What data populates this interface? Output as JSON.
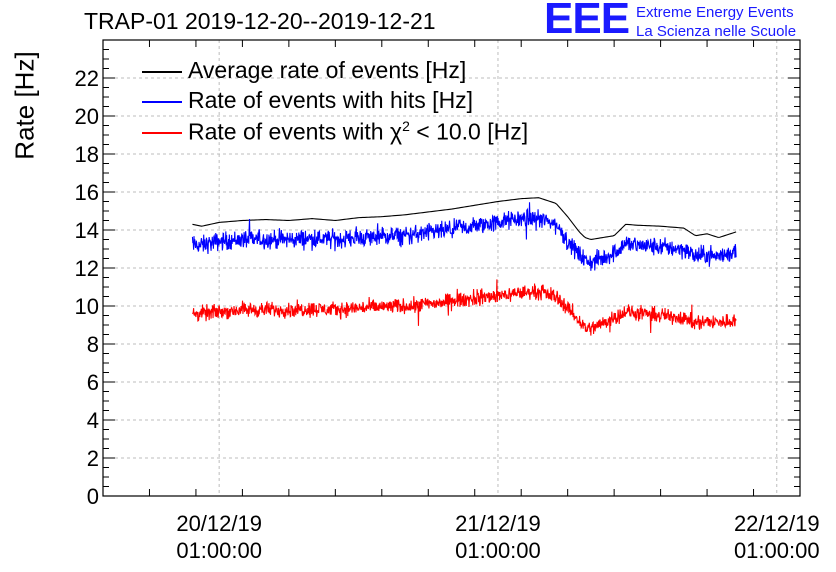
{
  "header": {
    "title": "TRAP-01 2019-12-20--2019-12-21",
    "logo_letters": "EEE",
    "logo_line1": "Extreme Energy Events",
    "logo_line2": "La Scienza nelle Scuole"
  },
  "colors": {
    "average": "#000000",
    "hits": "#0000ff",
    "chi2": "#ff0000",
    "grid": "#bdbdbd"
  },
  "chart_data": {
    "type": "line",
    "title": "TRAP-01 2019-12-20--2019-12-21",
    "ylabel": "Rate [Hz]",
    "xlabel": "",
    "ylim": [
      0,
      24
    ],
    "yticks": [
      0,
      2,
      4,
      6,
      8,
      10,
      12,
      14,
      16,
      18,
      20,
      22
    ],
    "xlim_hours": [
      -10,
      50
    ],
    "x_unit": "hours since 20/12/19 01:00:00",
    "xticks": [
      {
        "hours": 0,
        "date": "20/12/19",
        "time": "01:00:00"
      },
      {
        "hours": 24,
        "date": "21/12/19",
        "time": "01:00:00"
      },
      {
        "hours": 48,
        "date": "22/12/19",
        "time": "01:00:00"
      }
    ],
    "data_range_hours": [
      -2.3,
      44.5
    ],
    "series": [
      {
        "name": "Average rate of events [Hz]",
        "key": "average",
        "noise": 0,
        "x": [
          -2.3,
          -1.5,
          0,
          2,
          4,
          6,
          8,
          10,
          12,
          14,
          16,
          18,
          20,
          22,
          24,
          26,
          27.5,
          29,
          30,
          31,
          31.5,
          32,
          33,
          34,
          35,
          36,
          38,
          40,
          41,
          42,
          43,
          44.5
        ],
        "values": [
          14.3,
          14.2,
          14.4,
          14.5,
          14.55,
          14.5,
          14.6,
          14.5,
          14.65,
          14.7,
          14.8,
          14.95,
          15.1,
          15.3,
          15.5,
          15.65,
          15.7,
          15.4,
          14.7,
          13.9,
          13.6,
          13.5,
          13.6,
          13.7,
          14.3,
          14.25,
          14.2,
          14.1,
          13.7,
          13.8,
          13.6,
          13.9
        ]
      },
      {
        "name": "Rate of events with hits [Hz]",
        "key": "hits",
        "noise": 0.55,
        "x": [
          -2.3,
          -1.5,
          0,
          2,
          4,
          6,
          8,
          10,
          12,
          14,
          16,
          18,
          20,
          22,
          24,
          26,
          27.5,
          29,
          30,
          31,
          31.5,
          32,
          33,
          34,
          35,
          36,
          38,
          40,
          41,
          42,
          43,
          44.5
        ],
        "values": [
          13.2,
          13.2,
          13.4,
          13.5,
          13.5,
          13.5,
          13.55,
          13.5,
          13.6,
          13.65,
          13.7,
          13.85,
          14.0,
          14.2,
          14.4,
          14.6,
          14.6,
          14.3,
          13.4,
          12.7,
          12.4,
          12.3,
          12.5,
          12.8,
          13.3,
          13.2,
          13.1,
          13.0,
          12.6,
          12.7,
          12.6,
          12.9
        ]
      },
      {
        "name": "Rate of events with χ² < 10.0 [Hz]",
        "key": "chi2",
        "noise": 0.45,
        "x": [
          -2.3,
          -1.5,
          0,
          2,
          4,
          6,
          8,
          10,
          12,
          14,
          16,
          18,
          20,
          22,
          24,
          26,
          27.5,
          29,
          30,
          31,
          31.5,
          32,
          33,
          34,
          35,
          36,
          38,
          40,
          41,
          42,
          43,
          44.5
        ],
        "values": [
          9.6,
          9.6,
          9.7,
          9.8,
          9.8,
          9.8,
          9.85,
          9.8,
          9.9,
          9.95,
          10.0,
          10.1,
          10.25,
          10.4,
          10.55,
          10.7,
          10.75,
          10.5,
          9.9,
          9.2,
          8.9,
          8.8,
          9.1,
          9.4,
          9.7,
          9.6,
          9.5,
          9.4,
          9.1,
          9.2,
          9.1,
          9.3
        ]
      }
    ],
    "legend": {
      "position": "top-left",
      "entries": [
        {
          "key": "average",
          "label": "Average rate of events [Hz]"
        },
        {
          "key": "hits",
          "label": "Rate of events with hits [Hz]"
        },
        {
          "key": "chi2",
          "label_prefix": "Rate of events with ",
          "label_symbol": "χ",
          "label_sup": "2",
          "label_suffix": " < 10.0 [Hz]"
        }
      ]
    },
    "grid": true
  }
}
